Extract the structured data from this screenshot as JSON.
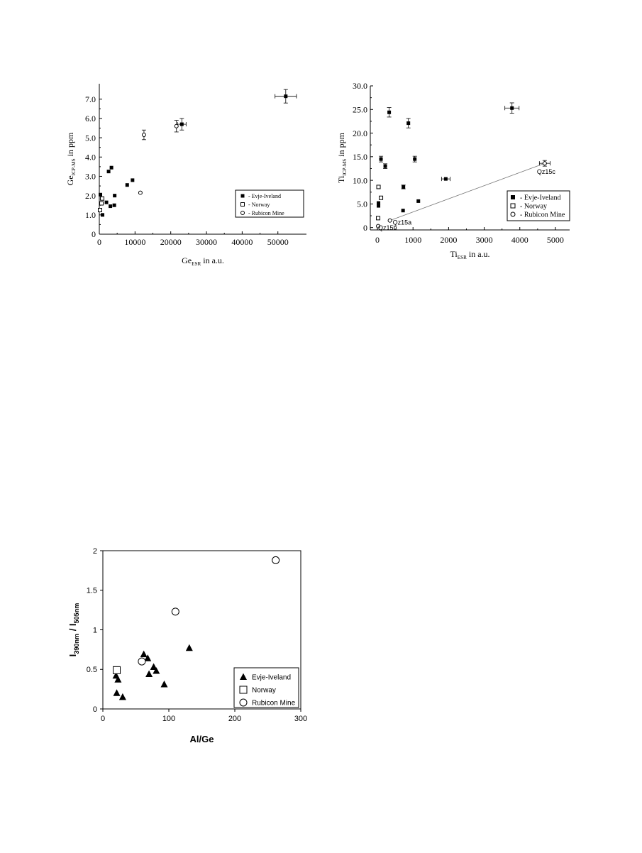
{
  "chart_data": [
    {
      "type": "scatter",
      "xlabel": "Ge",
      "xlabel_sub": "ESR",
      "xlabel_suffix": " in a.u.",
      "ylabel": "Ge",
      "ylabel_sub": "ICP-MS",
      "ylabel_suffix": " in ppm",
      "xlim": [
        0,
        58000
      ],
      "ylim": [
        0,
        7.8
      ],
      "x_ticks": [
        0,
        10000,
        20000,
        30000,
        40000,
        50000
      ],
      "x_tick_labels": [
        "0",
        "10000",
        "20000",
        "30000",
        "40000",
        "50000"
      ],
      "y_ticks": [
        0,
        1,
        2,
        3,
        4,
        5,
        6,
        7
      ],
      "y_tick_labels": [
        "0",
        "1.0",
        "2.0",
        "3.0",
        "4.0",
        "5.0",
        "6.0",
        "7.0"
      ],
      "legend_position": "bottom-right",
      "series": [
        {
          "name": "- Evje-Iveland",
          "marker": "filled-square",
          "points": [
            {
              "x": 300,
              "y": 2.05
            },
            {
              "x": 900,
              "y": 1.0
            },
            {
              "x": 2000,
              "y": 1.65
            },
            {
              "x": 2600,
              "y": 3.25
            },
            {
              "x": 3100,
              "y": 1.45
            },
            {
              "x": 3400,
              "y": 3.45
            },
            {
              "x": 4300,
              "y": 2.0
            },
            {
              "x": 4200,
              "y": 1.5
            },
            {
              "x": 7800,
              "y": 2.55
            },
            {
              "x": 9300,
              "y": 2.8
            },
            {
              "x": 23100,
              "y": 5.7,
              "xerr": 1200,
              "yerr": 0.3
            },
            {
              "x": 52200,
              "y": 7.15,
              "xerr": 3000,
              "yerr": 0.35
            }
          ]
        },
        {
          "name": "- Norway",
          "marker": "open-square",
          "points": [
            {
              "x": 200,
              "y": 1.25
            },
            {
              "x": 600,
              "y": 1.6
            },
            {
              "x": 800,
              "y": 1.85
            }
          ]
        },
        {
          "name": "- Rubicon Mine",
          "marker": "open-circle",
          "points": [
            {
              "x": 11500,
              "y": 2.15
            },
            {
              "x": 12500,
              "y": 5.15,
              "yerr": 0.25
            },
            {
              "x": 21600,
              "y": 5.6,
              "yerr": 0.3
            }
          ]
        }
      ]
    },
    {
      "type": "scatter",
      "xlabel": "Ti",
      "xlabel_sub": "ESR",
      "xlabel_suffix": " in a.u.",
      "ylabel": "Ti",
      "ylabel_sub": "ICP-MS",
      "ylabel_suffix": " in ppm",
      "xlim": [
        -200,
        5400
      ],
      "ylim": [
        -0.5,
        30
      ],
      "x_ticks": [
        0,
        1000,
        2000,
        3000,
        4000,
        5000
      ],
      "x_tick_labels": [
        "0",
        "1000",
        "2000",
        "3000",
        "4000",
        "5000"
      ],
      "y_ticks": [
        0,
        5,
        10,
        15,
        20,
        25,
        30
      ],
      "y_tick_labels": [
        "0",
        "5.0",
        "10.0",
        "15.0",
        "20.0",
        "25.0",
        "30.0"
      ],
      "legend_position": "bottom-right",
      "trend_line": {
        "from": [
          350,
          1.5
        ],
        "to": [
          4700,
          13.6
        ]
      },
      "annotations": [
        {
          "text": "Qz15a",
          "x": 430,
          "y": 1.2
        },
        {
          "text": "Qz15b",
          "x": 20,
          "y": 0.1
        },
        {
          "text": "Qz15c",
          "x": 4480,
          "y": 12.0
        }
      ],
      "series": [
        {
          "name": "- Evje-Iveland",
          "marker": "filled-square",
          "points": [
            {
              "x": 30,
              "y": 4.6
            },
            {
              "x": 30,
              "y": 5.2
            },
            {
              "x": 100,
              "y": 14.5,
              "yerr": 0.6
            },
            {
              "x": 220,
              "y": 13.0,
              "yerr": 0.5
            },
            {
              "x": 330,
              "y": 24.4,
              "yerr": 1.0
            },
            {
              "x": 720,
              "y": 3.6
            },
            {
              "x": 730,
              "y": 8.6,
              "yerr": 0.4
            },
            {
              "x": 870,
              "y": 22.1,
              "yerr": 1.0
            },
            {
              "x": 1050,
              "y": 14.5,
              "yerr": 0.6
            },
            {
              "x": 1150,
              "y": 5.6
            },
            {
              "x": 1920,
              "y": 10.3,
              "xerr": 120
            },
            {
              "x": 3780,
              "y": 25.3,
              "xerr": 200,
              "yerr": 1.1
            }
          ]
        },
        {
          "name": "- Norway",
          "marker": "open-square",
          "points": [
            {
              "x": 20,
              "y": 2.0
            },
            {
              "x": 30,
              "y": 8.6
            },
            {
              "x": 100,
              "y": 6.3
            }
          ]
        },
        {
          "name": "- Rubicon Mine",
          "marker": "open-circle",
          "points": [
            {
              "x": 20,
              "y": 0.3
            },
            {
              "x": 350,
              "y": 1.5
            },
            {
              "x": 4700,
              "y": 13.6,
              "xerr": 150,
              "yerr": 0.6
            }
          ]
        }
      ]
    },
    {
      "type": "scatter",
      "xlabel": "Al/Ge",
      "ylabel": "I",
      "ylabel_sub1": "390nm",
      "ylabel_mid": " / I",
      "ylabel_sub2": "505nm",
      "xlim": [
        0,
        300
      ],
      "ylim": [
        0,
        2
      ],
      "x_ticks": [
        0,
        100,
        200,
        300
      ],
      "x_tick_labels": [
        "0",
        "100",
        "200",
        "300"
      ],
      "y_ticks": [
        0,
        0.5,
        1,
        1.5,
        2
      ],
      "y_tick_labels": [
        "0",
        "0.5",
        "1",
        "1.5",
        "2"
      ],
      "legend_position": "bottom-right",
      "series": [
        {
          "name": "Evje-Iveland",
          "marker": "filled-triangle",
          "points": [
            {
              "x": 20,
              "y": 0.42
            },
            {
              "x": 21,
              "y": 0.2
            },
            {
              "x": 23,
              "y": 0.37
            },
            {
              "x": 30,
              "y": 0.15
            },
            {
              "x": 62,
              "y": 0.69
            },
            {
              "x": 68,
              "y": 0.64
            },
            {
              "x": 70,
              "y": 0.44
            },
            {
              "x": 77,
              "y": 0.53
            },
            {
              "x": 81,
              "y": 0.48
            },
            {
              "x": 93,
              "y": 0.31
            },
            {
              "x": 131,
              "y": 0.77
            }
          ]
        },
        {
          "name": "Norway",
          "marker": "open-square",
          "points": [
            {
              "x": 21,
              "y": 0.49
            }
          ]
        },
        {
          "name": "Rubicon Mine",
          "marker": "open-circle",
          "points": [
            {
              "x": 59,
              "y": 0.6
            },
            {
              "x": 110,
              "y": 1.23
            },
            {
              "x": 262,
              "y": 1.88
            }
          ]
        }
      ]
    }
  ]
}
